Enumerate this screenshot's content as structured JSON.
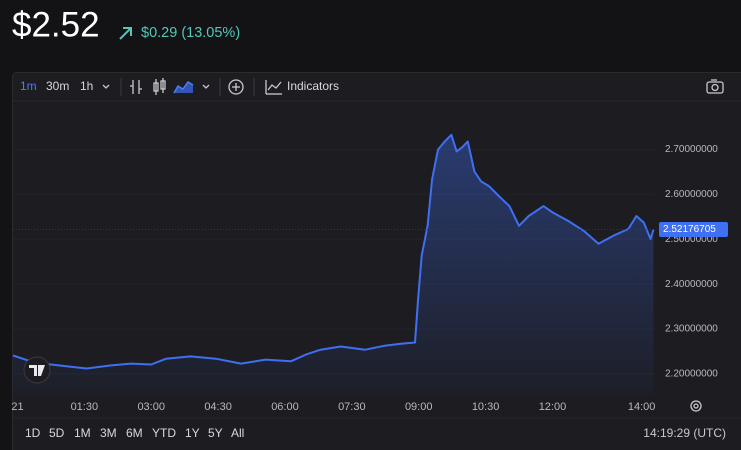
{
  "header": {
    "price": "$2.52",
    "change": "$0.29 (13.05%)"
  },
  "toolbar": {
    "intervals": [
      "1m",
      "30m",
      "1h"
    ],
    "indicators": "Indicators"
  },
  "chart_data": {
    "type": "area",
    "color": "#3f6ff2",
    "x": [
      -6,
      18,
      45,
      93,
      126,
      153,
      180,
      200,
      233,
      267,
      301,
      334,
      368,
      388,
      408,
      435,
      468,
      495,
      516,
      535,
      539,
      544,
      552,
      558,
      566,
      575,
      584,
      591,
      599,
      606,
      615,
      624,
      635,
      648,
      662,
      675,
      688,
      708,
      721,
      741,
      762,
      782,
      802,
      822,
      833,
      843,
      852,
      856
    ],
    "values": [
      2.241,
      2.228,
      2.221,
      2.212,
      2.219,
      2.223,
      2.221,
      2.234,
      2.239,
      2.234,
      2.223,
      2.232,
      2.228,
      2.243,
      2.254,
      2.261,
      2.254,
      2.263,
      2.267,
      2.27,
      2.364,
      2.464,
      2.53,
      2.634,
      2.7,
      2.718,
      2.733,
      2.696,
      2.706,
      2.718,
      2.651,
      2.629,
      2.618,
      2.596,
      2.574,
      2.53,
      2.552,
      2.574,
      2.559,
      2.541,
      2.519,
      2.49,
      2.508,
      2.523,
      2.552,
      2.537,
      2.501,
      2.52176705
    ],
    "xlim": [
      -6,
      858
    ],
    "xticks": [
      {
        "value": 0,
        "label": "21"
      },
      {
        "value": 90,
        "label": "01:30"
      },
      {
        "value": 180,
        "label": "03:00"
      },
      {
        "value": 270,
        "label": "04:30"
      },
      {
        "value": 360,
        "label": "06:00"
      },
      {
        "value": 450,
        "label": "07:30"
      },
      {
        "value": 540,
        "label": "09:00"
      },
      {
        "value": 630,
        "label": "10:30"
      },
      {
        "value": 720,
        "label": "12:00"
      },
      {
        "value": 840,
        "label": "14:00"
      }
    ],
    "ylim": [
      2.153,
      2.806
    ],
    "yticks": [
      {
        "value": 2.2,
        "label": "2.20000000"
      },
      {
        "value": 2.3,
        "label": "2.30000000"
      },
      {
        "value": 2.4,
        "label": "2.40000000"
      },
      {
        "value": 2.5,
        "label": "2.50000000"
      },
      {
        "value": 2.6,
        "label": "2.60000000"
      },
      {
        "value": 2.7,
        "label": "2.70000000"
      }
    ]
  },
  "footer": {
    "ranges": [
      "1D",
      "5D",
      "1M",
      "3M",
      "6M",
      "YTD",
      "1Y",
      "5Y",
      "All"
    ],
    "time": "14:19:29 (UTC)"
  }
}
